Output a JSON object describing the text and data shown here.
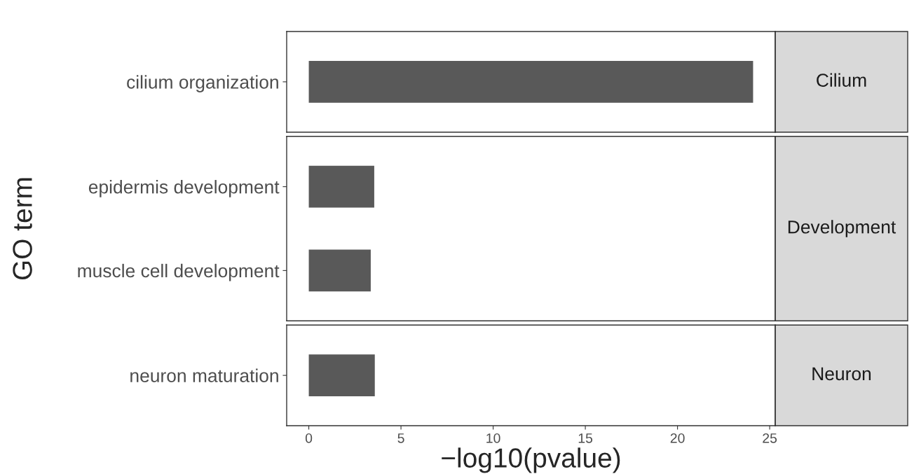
{
  "chart_data": [
    {
      "type": "bar",
      "orientation": "horizontal",
      "annotations": [
        "Cilium"
      ],
      "categories": [
        "cilium organization"
      ],
      "values": [
        24.1
      ],
      "color": "#595959",
      "xlim": [
        -1.2,
        25.3
      ],
      "xticks": [
        0,
        5,
        10,
        15,
        20,
        25
      ],
      "tick_labels": "y"
    },
    {
      "type": "bar",
      "orientation": "horizontal",
      "annotations": [
        "Development"
      ],
      "ylabel": "GO term",
      "categories": [
        "epidermis development",
        "muscle cell development"
      ],
      "values": [
        3.55,
        3.36
      ],
      "color": "#595959",
      "xlim": [
        -1.2,
        25.3
      ],
      "xticks": [
        0,
        5,
        10,
        15,
        20,
        25
      ],
      "tick_labels": "y"
    },
    {
      "type": "bar",
      "orientation": "horizontal",
      "annotations": [
        "Neuron"
      ],
      "xlabel": "−log10(pvalue)",
      "categories": [
        "neuron maturation"
      ],
      "values": [
        3.58
      ],
      "color": "#595959",
      "xlim": [
        -1.2,
        25.3
      ],
      "xticks": [
        0,
        5,
        10,
        15,
        20,
        25
      ]
    }
  ]
}
